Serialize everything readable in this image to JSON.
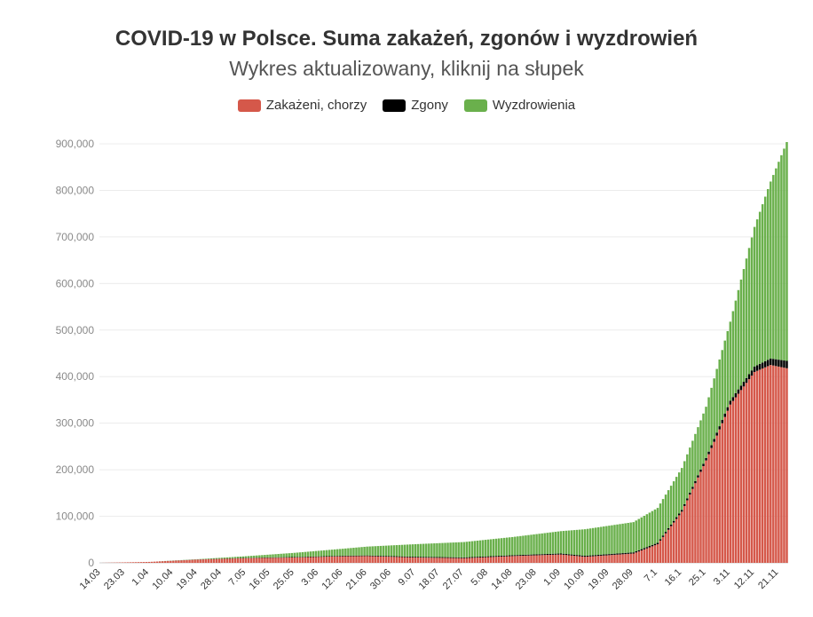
{
  "header": {
    "title": "COVID-19 w Polsce. Suma zakażeń, zgonów i wyzdrowień",
    "subtitle": "Wykres aktualizowany, kliknij na słupek"
  },
  "legend": [
    {
      "label": "Zakażeni, chorzy",
      "color": "#d5584a"
    },
    {
      "label": "Zgony",
      "color": "#000000"
    },
    {
      "label": "Wyzdrowienia",
      "color": "#6ab04c"
    }
  ],
  "chart_data": {
    "type": "bar",
    "stacked": true,
    "ylim": [
      0,
      900000
    ],
    "yticks": [
      0,
      100000,
      200000,
      300000,
      400000,
      500000,
      600000,
      700000,
      800000,
      900000
    ],
    "ytick_labels": [
      "0",
      "100,000",
      "200,000",
      "300,000",
      "400,000",
      "500,000",
      "600,000",
      "700,000",
      "800,000",
      "900,000"
    ],
    "x_tick_labels": [
      "14.03",
      "23.03",
      "1.04",
      "10.04",
      "19.04",
      "28.04",
      "7.05",
      "16.05",
      "25.05",
      "3.06",
      "12.06",
      "21.06",
      "30.06",
      "9.07",
      "18.07",
      "27.07",
      "5.08",
      "14.08",
      "23.08",
      "1.09",
      "10.09",
      "19.09",
      "28.09",
      "7.1",
      "16.1",
      "25.1",
      "3.11",
      "12.11",
      "21.11"
    ],
    "x_tick_dates": [
      "2020-03-14",
      "2020-03-23",
      "2020-04-01",
      "2020-04-10",
      "2020-04-19",
      "2020-04-28",
      "2020-05-07",
      "2020-05-16",
      "2020-05-25",
      "2020-06-03",
      "2020-06-12",
      "2020-06-21",
      "2020-06-30",
      "2020-07-09",
      "2020-07-18",
      "2020-07-27",
      "2020-08-05",
      "2020-08-14",
      "2020-08-23",
      "2020-09-01",
      "2020-09-10",
      "2020-09-19",
      "2020-09-28",
      "2020-10-07",
      "2020-10-16",
      "2020-10-25",
      "2020-11-03",
      "2020-11-12",
      "2020-11-21"
    ],
    "grid": true,
    "legend_position": "top-center",
    "series": [
      {
        "name": "Zakażeni, chorzy",
        "color": "#d5584a",
        "dates": [
          "2020-03-14",
          "2020-04-01",
          "2020-04-19",
          "2020-05-07",
          "2020-05-25",
          "2020-06-12",
          "2020-06-21",
          "2020-07-09",
          "2020-07-27",
          "2020-08-14",
          "2020-09-01",
          "2020-09-10",
          "2020-09-28",
          "2020-10-07",
          "2020-10-16",
          "2020-10-25",
          "2020-11-03",
          "2020-11-12",
          "2020-11-18",
          "2020-11-24"
        ],
        "values": [
          50,
          2000,
          7000,
          10000,
          11500,
          14000,
          14500,
          11500,
          10000,
          14500,
          18000,
          13000,
          20000,
          40000,
          110000,
          220000,
          340000,
          410000,
          425000,
          418000
        ]
      },
      {
        "name": "Zgony",
        "color": "#000000",
        "dates": [
          "2020-03-14",
          "2020-04-01",
          "2020-04-19",
          "2020-05-07",
          "2020-05-25",
          "2020-06-12",
          "2020-06-21",
          "2020-07-09",
          "2020-07-27",
          "2020-08-14",
          "2020-09-01",
          "2020-09-10",
          "2020-09-28",
          "2020-10-07",
          "2020-10-16",
          "2020-10-25",
          "2020-11-03",
          "2020-11-12",
          "2020-11-18",
          "2020-11-24"
        ],
        "values": [
          0,
          30,
          350,
          700,
          1000,
          1300,
          1400,
          1600,
          1700,
          1900,
          2100,
          2200,
          2500,
          3000,
          3800,
          5300,
          8000,
          11500,
          14000,
          15800
        ]
      },
      {
        "name": "Wyzdrowienia",
        "color": "#6ab04c",
        "dates": [
          "2020-03-14",
          "2020-04-01",
          "2020-04-19",
          "2020-05-07",
          "2020-05-25",
          "2020-06-12",
          "2020-06-21",
          "2020-07-09",
          "2020-07-27",
          "2020-08-14",
          "2020-09-01",
          "2020-09-10",
          "2020-09-28",
          "2020-10-07",
          "2020-10-16",
          "2020-10-25",
          "2020-11-03",
          "2020-11-12",
          "2020-11-18",
          "2020-11-24"
        ],
        "values": [
          0,
          10,
          500,
          3500,
          9000,
          15000,
          19000,
          27000,
          33000,
          39000,
          48000,
          57000,
          65000,
          75000,
          90000,
          110000,
          170000,
          300000,
          380000,
          470000
        ]
      }
    ]
  }
}
